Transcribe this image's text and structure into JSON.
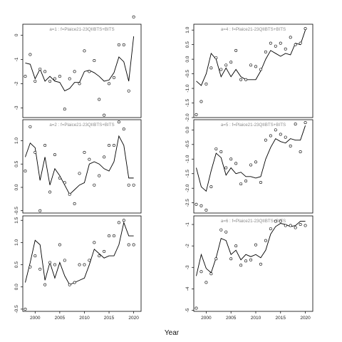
{
  "figure": {
    "xlabel": "Year"
  },
  "chart_data": [
    {
      "type": "line",
      "title": "a=1 : f=Plaice21-23QIIBTS+BITS",
      "xlim": [
        1997.5,
        2021.5
      ],
      "ylim": [
        -3.4,
        0.45
      ],
      "yticks": [
        -3,
        -2,
        -1,
        0
      ],
      "ytick_labels": [
        "-3",
        "-2",
        "-1",
        "0"
      ],
      "show_xticks": false,
      "line": {
        "x": [
          1998,
          1999,
          2000,
          2001,
          2002,
          2003,
          2004,
          2005,
          2006,
          2007,
          2008,
          2009,
          2010,
          2011,
          2012,
          2013,
          2014,
          2015,
          2016,
          2017,
          2018,
          2019,
          2020
        ],
        "y": [
          -1.15,
          -1.2,
          -1.8,
          -1.4,
          -1.9,
          -1.7,
          -1.9,
          -1.95,
          -2.3,
          -2.2,
          -1.95,
          -1.95,
          -1.5,
          -1.45,
          -1.55,
          -1.7,
          -1.9,
          -1.85,
          -1.55,
          -0.9,
          -1.1,
          -1.9,
          -0.05
        ]
      },
      "points": {
        "x": [
          1998,
          1999,
          2000,
          2001,
          2002,
          2003,
          2004,
          2005,
          2006,
          2007,
          2008,
          2009,
          2010,
          2011,
          2012,
          2013,
          2014,
          2015,
          2016,
          2017,
          2018,
          2019,
          2020
        ],
        "y": [
          -1.7,
          -0.8,
          -1.9,
          -1.4,
          -1.5,
          -1.9,
          -1.8,
          -1.7,
          -3.05,
          -1.8,
          -1.5,
          -2.0,
          -0.65,
          -1.5,
          -1.05,
          -2.65,
          -3.3,
          -2.0,
          -1.75,
          -0.4,
          -0.4,
          -2.3,
          0.75
        ]
      }
    },
    {
      "type": "line",
      "title": "a=4 : f=Plaice21-23QIIBTS+BITS",
      "xlim": [
        1997.5,
        2021.5
      ],
      "ylim": [
        -2.0,
        1.2
      ],
      "yticks": [
        -2.0,
        -1.5,
        -1.0,
        -0.5,
        0.0,
        0.5,
        1.0
      ],
      "ytick_labels": [
        "-2.0",
        "-1.5",
        "-1.0",
        "-0.5",
        "0.0",
        "0.5",
        "1.0"
      ],
      "show_xticks": false,
      "line": {
        "x": [
          1998,
          1999,
          2000,
          2001,
          2002,
          2003,
          2004,
          2005,
          2006,
          2007,
          2008,
          2009,
          2010,
          2011,
          2012,
          2013,
          2014,
          2015,
          2016,
          2017,
          2018,
          2019,
          2020
        ],
        "y": [
          -0.75,
          -0.9,
          -0.5,
          0.2,
          0.0,
          -0.6,
          -0.3,
          -0.6,
          -0.35,
          -0.6,
          -0.7,
          -0.7,
          -0.7,
          -0.4,
          0.0,
          0.3,
          0.2,
          0.1,
          0.2,
          0.15,
          0.55,
          0.5,
          1.0
        ]
      },
      "points": {
        "x": [
          1998,
          1999,
          2000,
          2001,
          2002,
          2003,
          2004,
          2005,
          2006,
          2007,
          2008,
          2009,
          2010,
          2011,
          2012,
          2013,
          2014,
          2015,
          2016,
          2017,
          2018,
          2019,
          2020
        ],
        "y": [
          -1.9,
          -1.45,
          -0.85,
          -0.3,
          0.05,
          -0.35,
          -0.2,
          -0.1,
          0.3,
          -0.7,
          -0.7,
          -0.2,
          -0.25,
          -0.35,
          0.25,
          0.55,
          0.45,
          0.55,
          0.35,
          0.75,
          0.5,
          0.55,
          1.05
        ]
      }
    },
    {
      "type": "line",
      "title": "a=2 : f=Plaice21-23QIIBTS+BITS",
      "xlim": [
        1997.5,
        2021.5
      ],
      "ylim": [
        -0.55,
        1.45
      ],
      "yticks": [
        -0.5,
        0.0,
        0.5,
        1.0
      ],
      "ytick_labels": [
        "-0.5",
        "0.0",
        "0.5",
        "1.0"
      ],
      "show_xticks": false,
      "line": {
        "x": [
          1998,
          1999,
          2000,
          2001,
          2002,
          2003,
          2004,
          2005,
          2006,
          2007,
          2008,
          2009,
          2010,
          2011,
          2012,
          2013,
          2014,
          2015,
          2016,
          2017,
          2018,
          2019,
          2020
        ],
        "y": [
          0.65,
          0.95,
          0.85,
          0.15,
          0.65,
          0.05,
          0.4,
          0.25,
          0.05,
          -0.15,
          -0.05,
          0.05,
          0.1,
          0.5,
          0.55,
          0.5,
          0.4,
          0.35,
          0.55,
          1.1,
          0.9,
          0.2,
          0.2
        ]
      },
      "points": {
        "x": [
          1998,
          1999,
          2000,
          2001,
          2002,
          2003,
          2004,
          2005,
          2006,
          2007,
          2008,
          2009,
          2010,
          2011,
          2012,
          2013,
          2014,
          2015,
          2016,
          2017,
          2018,
          2019,
          2020
        ],
        "y": [
          0.35,
          1.3,
          0.75,
          -0.5,
          0.9,
          -0.1,
          0.7,
          0.2,
          0.1,
          -0.15,
          -0.35,
          0.3,
          0.75,
          0.6,
          0.05,
          0.25,
          0.65,
          0.9,
          0.9,
          1.4,
          1.25,
          0.05,
          0.05
        ]
      }
    },
    {
      "type": "line",
      "title": "a=5 : f=Plaice21-23QIIBTS+BITS",
      "xlim": [
        1997.5,
        2021.5
      ],
      "ylim": [
        -2.85,
        0.35
      ],
      "yticks": [
        -2.5,
        -2.0,
        -1.5,
        -1.0,
        -0.5,
        0.0
      ],
      "ytick_labels": [
        "-2.5",
        "-2.0",
        "-1.5",
        "-1.0",
        "-0.5",
        "0.0"
      ],
      "show_xticks": false,
      "line": {
        "x": [
          1998,
          1999,
          2000,
          2001,
          2002,
          2003,
          2004,
          2005,
          2006,
          2007,
          2008,
          2009,
          2010,
          2011,
          2012,
          2013,
          2014,
          2015,
          2016,
          2017,
          2018,
          2019,
          2020
        ],
        "y": [
          -1.3,
          -1.95,
          -2.1,
          -1.4,
          -0.8,
          -0.95,
          -1.55,
          -1.3,
          -1.5,
          -1.45,
          -1.6,
          -1.6,
          -1.65,
          -1.6,
          -1.0,
          -0.6,
          -0.3,
          -0.4,
          -0.45,
          -0.3,
          -0.35,
          -0.35,
          0.15
        ]
      },
      "points": {
        "x": [
          1998,
          1999,
          2000,
          2001,
          2002,
          2003,
          2004,
          2005,
          2006,
          2007,
          2008,
          2009,
          2010,
          2011,
          2012,
          2013,
          2014,
          2015,
          2016,
          2017,
          2018,
          2019,
          2020
        ],
        "y": [
          -2.55,
          -2.6,
          -2.75,
          -1.95,
          -0.65,
          -0.75,
          -1.3,
          -1.0,
          -1.15,
          -1.85,
          -1.75,
          -1.2,
          -1.1,
          -1.8,
          -0.35,
          -0.2,
          0.0,
          -0.15,
          -0.25,
          -0.55,
          0.2,
          -0.75,
          0.25
        ]
      }
    },
    {
      "type": "line",
      "title": "",
      "xlim": [
        1997.5,
        2021.5
      ],
      "ylim": [
        -0.55,
        1.6
      ],
      "yticks": [
        -0.5,
        0.0,
        0.5,
        1.0,
        1.5
      ],
      "ytick_labels": [
        "-0.5",
        "0.0",
        "0.5",
        "1.0",
        "1.5"
      ],
      "show_xticks": true,
      "xticks": [
        2000,
        2005,
        2010,
        2015,
        2020
      ],
      "xtick_labels": [
        "2000",
        "2005",
        "2010",
        "2015",
        "2020"
      ],
      "line": {
        "x": [
          1998,
          1999,
          2000,
          2001,
          2002,
          2003,
          2004,
          2005,
          2006,
          2007,
          2008,
          2009,
          2010,
          2011,
          2012,
          2013,
          2014,
          2015,
          2016,
          2017,
          2018,
          2019,
          2020
        ],
        "y": [
          0.1,
          0.55,
          1.05,
          0.95,
          0.15,
          0.55,
          0.2,
          0.55,
          0.25,
          0.05,
          0.1,
          0.15,
          0.2,
          0.5,
          0.85,
          0.75,
          0.65,
          0.7,
          0.7,
          0.95,
          1.45,
          1.15,
          1.15
        ]
      },
      "points": {
        "x": [
          1998,
          1999,
          2000,
          2001,
          2002,
          2003,
          2004,
          2005,
          2006,
          2007,
          2008,
          2009,
          2010,
          2011,
          2012,
          2013,
          2014,
          2015,
          2016,
          2017,
          2018,
          2019,
          2020
        ],
        "y": [
          -0.5,
          0.45,
          0.7,
          0.4,
          0.05,
          0.55,
          0.5,
          0.95,
          0.6,
          0.05,
          0.1,
          0.5,
          0.5,
          0.6,
          1.0,
          0.7,
          0.8,
          1.15,
          1.15,
          1.45,
          1.5,
          0.95,
          0.95
        ]
      }
    },
    {
      "type": "line",
      "title": "a=6 : f=Plaice21-23QIIBTS+BITS",
      "xlim": [
        1997.5,
        2021.5
      ],
      "ylim": [
        -5.05,
        -0.6
      ],
      "yticks": [
        -5,
        -4,
        -3,
        -2,
        -1
      ],
      "ytick_labels": [
        "-5",
        "-4",
        "-3",
        "-2",
        "-1"
      ],
      "show_xticks": true,
      "xticks": [
        2000,
        2005,
        2010,
        2015,
        2020
      ],
      "xtick_labels": [
        "2000",
        "2005",
        "2010",
        "2015",
        "2020"
      ],
      "line": {
        "x": [
          1998,
          1999,
          2000,
          2001,
          2002,
          2003,
          2004,
          2005,
          2006,
          2007,
          2008,
          2009,
          2010,
          2011,
          2012,
          2013,
          2014,
          2015,
          2016,
          2017,
          2018,
          2019,
          2020
        ],
        "y": [
          -3.4,
          -2.4,
          -3.05,
          -3.25,
          -2.55,
          -1.65,
          -1.75,
          -2.4,
          -2.2,
          -2.65,
          -2.4,
          -2.5,
          -2.4,
          -2.55,
          -2.2,
          -1.45,
          -1.1,
          -0.95,
          -1.0,
          -1.1,
          -1.05,
          -0.85,
          -0.85
        ]
      },
      "points": {
        "x": [
          1998,
          1999,
          2000,
          2001,
          2002,
          2003,
          2004,
          2005,
          2006,
          2007,
          2008,
          2009,
          2010,
          2011,
          2012,
          2013,
          2014,
          2015,
          2016,
          2017,
          2018,
          2019,
          2020
        ],
        "y": [
          -4.9,
          -3.2,
          -3.7,
          -3.3,
          -2.6,
          -1.25,
          -1.35,
          -2.6,
          -2.0,
          -2.9,
          -2.7,
          -2.65,
          -1.95,
          -2.85,
          -1.75,
          -1.2,
          -0.85,
          -0.85,
          -1.05,
          -1.05,
          -1.15,
          -1.0,
          -1.05
        ]
      }
    }
  ]
}
